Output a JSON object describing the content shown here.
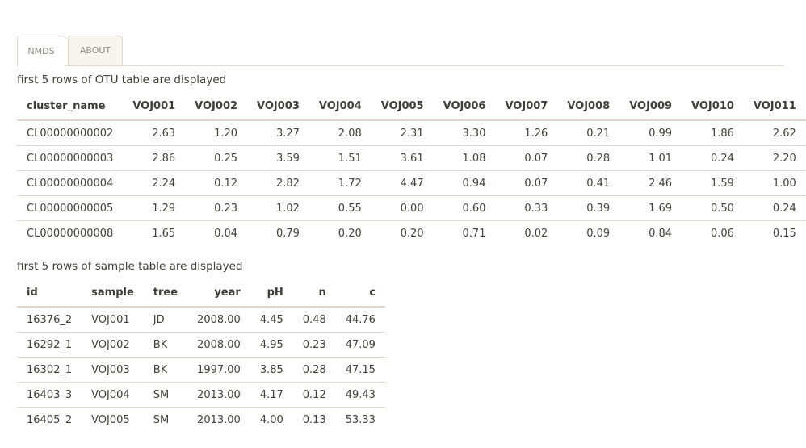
{
  "tabs": [
    {
      "label": "NMDS",
      "active": true
    },
    {
      "label": "ABOUT",
      "active": false
    }
  ],
  "otu": {
    "caption": "first 5 rows of OTU table are displayed",
    "columns": [
      "cluster_name",
      "VOJ001",
      "VOJ002",
      "VOJ003",
      "VOJ004",
      "VOJ005",
      "VOJ006",
      "VOJ007",
      "VOJ008",
      "VOJ009",
      "VOJ010",
      "VOJ011"
    ],
    "rows": [
      [
        "CL00000000002",
        "2.63",
        "1.20",
        "3.27",
        "2.08",
        "2.31",
        "3.30",
        "1.26",
        "0.21",
        "0.99",
        "1.86",
        "2.62"
      ],
      [
        "CL00000000003",
        "2.86",
        "0.25",
        "3.59",
        "1.51",
        "3.61",
        "1.08",
        "0.07",
        "0.28",
        "1.01",
        "0.24",
        "2.20"
      ],
      [
        "CL00000000004",
        "2.24",
        "0.12",
        "2.82",
        "1.72",
        "4.47",
        "0.94",
        "0.07",
        "0.41",
        "2.46",
        "1.59",
        "1.00"
      ],
      [
        "CL00000000005",
        "1.29",
        "0.23",
        "1.02",
        "0.55",
        "0.00",
        "0.60",
        "0.33",
        "0.39",
        "1.69",
        "0.50",
        "0.24"
      ],
      [
        "CL00000000008",
        "1.65",
        "0.04",
        "0.79",
        "0.20",
        "0.20",
        "0.71",
        "0.02",
        "0.09",
        "0.84",
        "0.06",
        "0.15"
      ]
    ]
  },
  "sample": {
    "caption": "first 5 rows of sample table are displayed",
    "columns": [
      "id",
      "sample",
      "tree",
      "year",
      "pH",
      "n",
      "c"
    ],
    "rows": [
      [
        "16376_2",
        "VOJ001",
        "JD",
        "2008.00",
        "4.45",
        "0.48",
        "44.76"
      ],
      [
        "16292_1",
        "VOJ002",
        "BK",
        "2008.00",
        "4.95",
        "0.23",
        "47.09"
      ],
      [
        "16302_1",
        "VOJ003",
        "BK",
        "1997.00",
        "3.85",
        "0.28",
        "47.15"
      ],
      [
        "16403_3",
        "VOJ004",
        "SM",
        "2013.00",
        "4.17",
        "0.12",
        "49.43"
      ],
      [
        "16405_2",
        "VOJ005",
        "SM",
        "2013.00",
        "4.00",
        "0.13",
        "53.33"
      ]
    ]
  }
}
